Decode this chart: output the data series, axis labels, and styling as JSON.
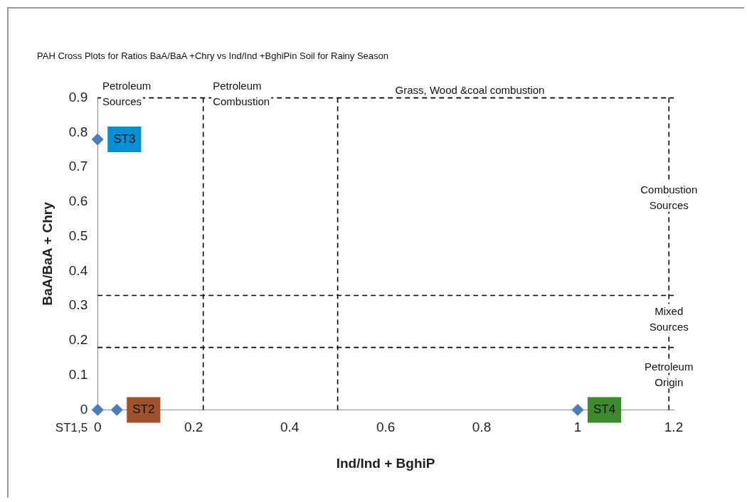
{
  "chart_data": {
    "type": "scatter",
    "title": "PAH Cross Plots for Ratios BaA/BaA +Chry vs Ind/Ind +BghiPin Soil for Rainy Season",
    "xlabel": "Ind/Ind + BghiP",
    "ylabel": "BaA/BaA + Chry",
    "series": [
      {
        "color": "#4a7ebb",
        "x": [
          0,
          0.04,
          0,
          1
        ],
        "values": [
          0,
          0,
          0.78,
          0
        ],
        "value_labels": [
          "ST1,5",
          "ST2",
          "ST3",
          "ST4"
        ]
      }
    ],
    "marker": "diamond",
    "grid": false,
    "legend": false,
    "xlim": [
      0,
      1.2
    ],
    "xticks": [
      0,
      0.2,
      0.4,
      0.6,
      0.8,
      1,
      1.2
    ],
    "ylim": [
      0,
      0.9
    ],
    "yticks": [
      0,
      0.1,
      0.2,
      0.3,
      0.4,
      0.5,
      0.6,
      0.7,
      0.8,
      0.9
    ],
    "ref_lines": [
      {
        "axis": "y",
        "value": 0.9,
        "color": "#000000",
        "line_style": "dashed"
      },
      {
        "axis": "y",
        "value": 0.33,
        "color": "#000000",
        "line_style": "dashed"
      },
      {
        "axis": "y",
        "value": 0.18,
        "color": "#000000",
        "line_style": "dashed"
      },
      {
        "axis": "x",
        "value": 0.22,
        "color": "#000000",
        "line_style": "dashed"
      },
      {
        "axis": "x",
        "value": 0.5,
        "color": "#000000",
        "line_style": "dashed"
      },
      {
        "axis": "x",
        "value": 1.19,
        "color": "#000000",
        "line_style": "dashed"
      }
    ],
    "annotations": [
      {
        "text": "Petroleum\nSources",
        "x": 0.01,
        "y": 0.9
      },
      {
        "text": "Petroleum\nCombustion",
        "x": 0.24,
        "y": 0.9
      },
      {
        "text": "Grass, Wood &coal combustion",
        "x": 0.62,
        "y": 0.9
      },
      {
        "text": "Combustion\nSources",
        "x": 1.19,
        "y": 0.6
      },
      {
        "text": "Mixed\nSources",
        "x": 1.19,
        "y": 0.25
      },
      {
        "text": "Petroleum\nOrigin",
        "x": 1.19,
        "y": 0.09
      }
    ]
  }
}
